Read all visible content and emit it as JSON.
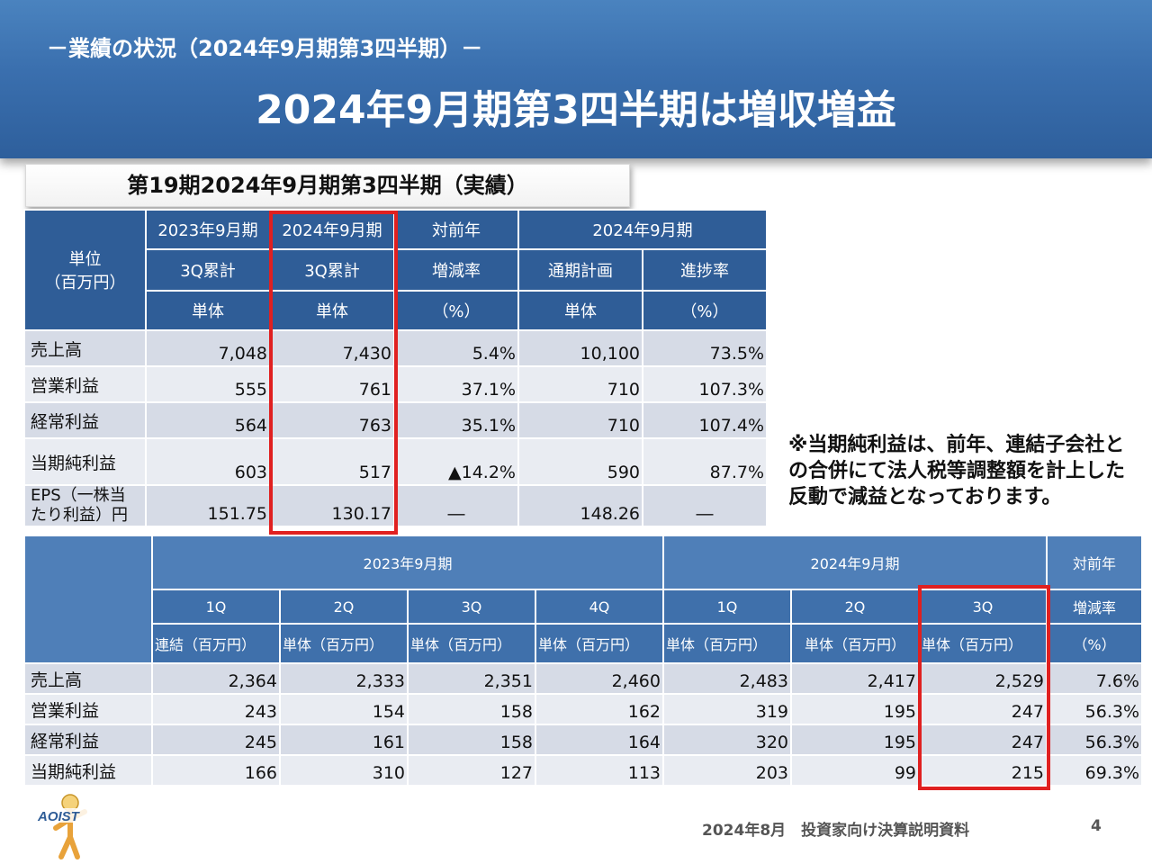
{
  "header": {
    "subtitle": "－業績の状況（2024年9月期第3四半期）－",
    "title": "2024年9月期第3四半期は増収増益"
  },
  "section_title": "第19期2024年9月期第3四半期（実績）",
  "table1": {
    "unit_label_1": "単位",
    "unit_label_2": "（百万円）",
    "header_row1": [
      "2023年9月期",
      "2024年9月期",
      "対前年",
      "2024年9月期"
    ],
    "header_row2": [
      "3Q累計",
      "3Q累計",
      "増減率",
      "通期計画",
      "進捗率"
    ],
    "header_row3": [
      "単体",
      "単体",
      "（%）",
      "単体",
      "（%）"
    ],
    "rows": [
      {
        "label": "売上高",
        "cells": [
          "7,048",
          "7,430",
          "5.4%",
          "10,100",
          "73.5%"
        ]
      },
      {
        "label": "営業利益",
        "cells": [
          "555",
          "761",
          "37.1%",
          "710",
          "107.3%"
        ]
      },
      {
        "label": "経常利益",
        "cells": [
          "564",
          "763",
          "35.1%",
          "710",
          "107.4%"
        ]
      },
      {
        "label": "当期純利益",
        "cells": [
          "603",
          "517",
          "▲14.2%",
          "590",
          "87.7%"
        ]
      },
      {
        "label_1": "EPS（一株当",
        "label_2": "たり利益）円",
        "cells": [
          "151.75",
          "130.17",
          "―",
          "148.26",
          "―"
        ]
      }
    ]
  },
  "note": "※当期純利益は、前年、連結子会社との合併にて法人税等調整額を計上した反動で減益となっております。",
  "table2": {
    "header_row1": [
      "2023年9月期",
      "2024年9月期",
      "対前年"
    ],
    "header_row2": [
      "1Q",
      "2Q",
      "3Q",
      "4Q",
      "1Q",
      "2Q",
      "3Q",
      "増減率"
    ],
    "header_row3": [
      "連結（百万円）",
      "単体（百万円）",
      "単体（百万円）",
      "単体（百万円）",
      "単体（百万円）",
      "単体（百万円）",
      "単体（百万円）",
      "（%）"
    ],
    "rows": [
      {
        "label": "売上高",
        "cells": [
          "2,364",
          "2,333",
          "2,351",
          "2,460",
          "2,483",
          "2,417",
          "2,529",
          "7.6%"
        ]
      },
      {
        "label": "営業利益",
        "cells": [
          "243",
          "154",
          "158",
          "162",
          "319",
          "195",
          "247",
          "56.3%"
        ]
      },
      {
        "label": "経常利益",
        "cells": [
          "245",
          "161",
          "158",
          "164",
          "320",
          "195",
          "247",
          "56.3%"
        ]
      },
      {
        "label": "当期純利益",
        "cells": [
          "166",
          "310",
          "127",
          "113",
          "203",
          "99",
          "215",
          "69.3%"
        ]
      }
    ]
  },
  "footer": {
    "text": "2024年8月　投資家向け決算説明資料",
    "page": "4",
    "logo_text": "AOIST"
  },
  "colors": {
    "header_blue": "#3a6fae",
    "table_header": "#2f5d97",
    "table_cell": "#d6dbe6",
    "highlight": "#e02020"
  }
}
